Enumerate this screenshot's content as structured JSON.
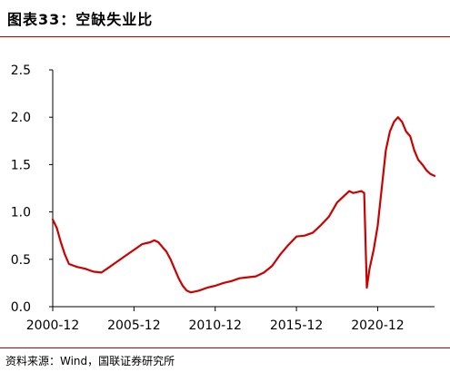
{
  "header": {
    "title": "图表33：空缺失业比"
  },
  "footer": {
    "source": "资料来源：Wind，国联证券研究所"
  },
  "colors": {
    "accent": "#c00000",
    "line": "#cc0000",
    "axis": "#000000"
  },
  "chart_data": {
    "type": "line",
    "title": "",
    "xlabel": "",
    "ylabel": "",
    "xlim": [
      "2000-12",
      "2024-06"
    ],
    "ylim": [
      0,
      2.5
    ],
    "x_ticks": [
      "2000-12",
      "2005-12",
      "2010-12",
      "2015-12",
      "2020-12"
    ],
    "y_ticks": [
      "0.0",
      "0.5",
      "1.0",
      "1.5",
      "2.0",
      "2.5"
    ],
    "grid": false,
    "legend": "none",
    "series": [
      {
        "name": "",
        "x": [
          "2000-12",
          "2001-03",
          "2001-06",
          "2001-09",
          "2001-12",
          "2002-06",
          "2002-12",
          "2003-06",
          "2003-12",
          "2004-06",
          "2004-12",
          "2005-06",
          "2005-12",
          "2006-06",
          "2006-12",
          "2007-03",
          "2007-06",
          "2007-09",
          "2007-12",
          "2008-03",
          "2008-06",
          "2008-09",
          "2008-12",
          "2009-03",
          "2009-06",
          "2009-09",
          "2009-12",
          "2010-06",
          "2010-12",
          "2011-06",
          "2011-12",
          "2012-06",
          "2012-12",
          "2013-06",
          "2013-12",
          "2014-06",
          "2014-12",
          "2015-06",
          "2015-12",
          "2016-06",
          "2016-12",
          "2017-06",
          "2017-12",
          "2018-06",
          "2018-12",
          "2019-03",
          "2019-06",
          "2019-09",
          "2019-12",
          "2020-02",
          "2020-04",
          "2020-06",
          "2020-09",
          "2020-12",
          "2021-03",
          "2021-06",
          "2021-09",
          "2021-12",
          "2022-03",
          "2022-06",
          "2022-09",
          "2022-12",
          "2023-03",
          "2023-06",
          "2023-09",
          "2023-12",
          "2024-03",
          "2024-06"
        ],
        "y": [
          0.92,
          0.83,
          0.68,
          0.55,
          0.45,
          0.42,
          0.4,
          0.37,
          0.36,
          0.42,
          0.48,
          0.54,
          0.6,
          0.66,
          0.68,
          0.7,
          0.68,
          0.63,
          0.58,
          0.5,
          0.4,
          0.3,
          0.22,
          0.17,
          0.15,
          0.16,
          0.17,
          0.2,
          0.22,
          0.25,
          0.27,
          0.3,
          0.31,
          0.32,
          0.36,
          0.43,
          0.55,
          0.65,
          0.74,
          0.75,
          0.78,
          0.86,
          0.95,
          1.1,
          1.18,
          1.22,
          1.2,
          1.21,
          1.22,
          1.2,
          0.2,
          0.4,
          0.6,
          0.85,
          1.25,
          1.65,
          1.85,
          1.95,
          2.0,
          1.95,
          1.85,
          1.8,
          1.65,
          1.55,
          1.5,
          1.44,
          1.4,
          1.38
        ]
      }
    ]
  }
}
